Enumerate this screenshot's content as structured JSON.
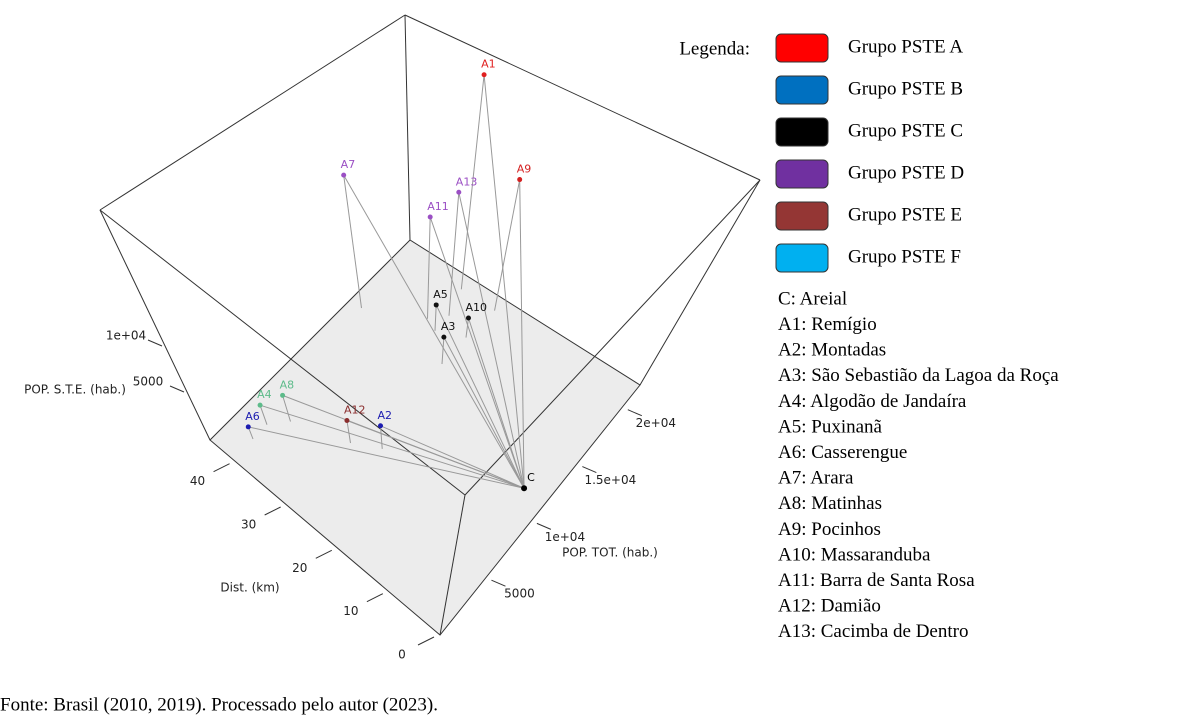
{
  "chart_data": {
    "type": "scatter3d",
    "xlabel": "Dist. (km)",
    "ylabel": "POP. TOT. (hab.)",
    "zlabel": "POP. S.T.E. (hab.)",
    "xlim": [
      0,
      45
    ],
    "ylim": [
      0,
      22000
    ],
    "zlim": [
      0,
      25000
    ],
    "xticks": [
      0,
      10,
      20,
      30,
      40
    ],
    "yticks": [
      5000,
      {
        "value": 10000,
        "label": "1e+04"
      },
      {
        "value": 15000,
        "label": "1.5e+04"
      },
      {
        "value": 20000,
        "label": "2e+04"
      }
    ],
    "zticks": [
      5000,
      {
        "value": 10000,
        "label": "1e+04"
      }
    ],
    "origin": {
      "label": "C",
      "x": 0,
      "y": 6600,
      "z": 11250,
      "color": "#000000"
    },
    "points": {
      "labels": [
        "A1",
        "A2",
        "A3",
        "A4",
        "A5",
        "A6",
        "A7",
        "A8",
        "A9",
        "A10",
        "A11",
        "A12",
        "A13"
      ],
      "x": [
        33,
        25,
        27,
        40.5,
        31.5,
        40.5,
        42.75,
        38.25,
        26.5,
        27,
        33.75,
        29.25,
        31.5
      ],
      "y": [
        20900,
        7700,
        15400,
        3740,
        17160,
        2200,
        15400,
        5060,
        20900,
        18040,
        17600,
        6600,
        18700
      ],
      "z": [
        24500,
        2900,
        3200,
        2200,
        3000,
        1375,
        14800,
        3000,
        15200,
        2300,
        11700,
        2750,
        14250
      ],
      "colors": [
        "#e02020",
        "#1c1cb0",
        "#111111",
        "#5dbb8a",
        "#111111",
        "#1c1cb0",
        "#9b4fc4",
        "#5dbb8a",
        "#d42020",
        "#111111",
        "#9b4fc4",
        "#8b2e2e",
        "#9b4fc4"
      ]
    },
    "legend": {
      "title": "Legenda:",
      "groups": [
        {
          "name": "Grupo PSTE A",
          "color": "#ff0000"
        },
        {
          "name": "Grupo PSTE B",
          "color": "#0070c0"
        },
        {
          "name": "Grupo PSTE C",
          "color": "#000000"
        },
        {
          "name": "Grupo PSTE D",
          "color": "#7030a0"
        },
        {
          "name": "Grupo PSTE E",
          "color": "#943634"
        },
        {
          "name": "Grupo PSTE F",
          "color": "#00b0f0"
        }
      ],
      "list": [
        "C: Areial",
        "A1: Remígio",
        "A2: Montadas",
        "A3: São Sebastião da Lagoa da Roça",
        "A4: Algodão de Jandaíra",
        "A5: Puxinanã",
        "A6: Casserengue",
        "A7: Arara",
        "A8: Matinhas",
        "A9: Pocinhos",
        "A10: Massaranduba",
        "A11: Barra de Santa Rosa",
        "A12: Damião",
        "A13: Cacimba de Dentro"
      ]
    },
    "source": "Fonte: Brasil (2010, 2019). Processado pelo autor (2023)."
  }
}
